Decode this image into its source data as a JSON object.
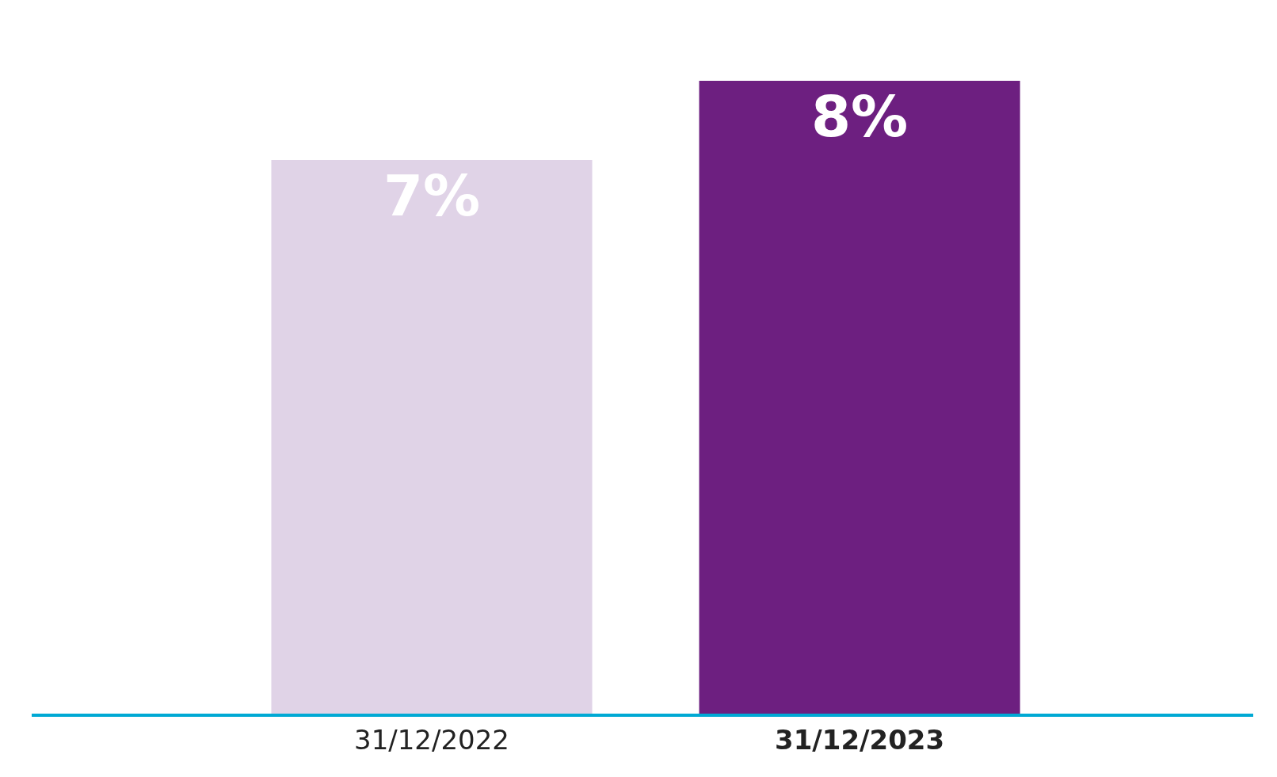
{
  "chart_data": {
    "type": "bar",
    "categories": [
      "31/12/2022",
      "31/12/2023"
    ],
    "values": [
      7,
      8
    ],
    "value_labels": [
      "7%",
      "8%"
    ],
    "colors": [
      "#e0d3e7",
      "#6d1f80"
    ],
    "legend": false,
    "tick_labels": "x"
  }
}
